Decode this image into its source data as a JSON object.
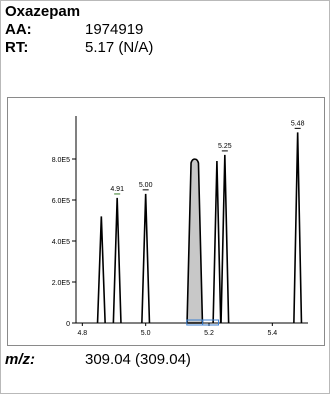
{
  "compound": "Oxazepam",
  "aa": {
    "label": "AA:",
    "value": "1974919"
  },
  "rt": {
    "label": "RT:",
    "value": "5.17 (N/A)"
  },
  "mz": {
    "label": "m/z:",
    "value": "309.04 (309.04)"
  },
  "chart_data": {
    "type": "line",
    "x_ticks": [
      "4.8",
      "5.0",
      "5.2",
      "5.4"
    ],
    "y_ticks": [
      "0",
      "2.0E5",
      "4.0E5",
      "6.0E5",
      "8.0E5"
    ],
    "xlim": [
      4.78,
      5.5
    ],
    "ylim": [
      0,
      1000000
    ],
    "peaks": [
      {
        "rt": 4.86,
        "height": 520000,
        "label": ""
      },
      {
        "rt": 4.91,
        "height": 610000,
        "label": "4.91"
      },
      {
        "rt": 5.0,
        "height": 630000,
        "label": "5.00"
      },
      {
        "rt": 5.155,
        "height": 800000,
        "label": "",
        "shaded": true
      },
      {
        "rt": 5.225,
        "height": 790000,
        "label": ""
      },
      {
        "rt": 5.25,
        "height": 820000,
        "label": "5.25"
      },
      {
        "rt": 5.48,
        "height": 930000,
        "label": "5.48"
      }
    ],
    "integration_window": [
      5.13,
      5.23
    ],
    "colors": {
      "trace": "#000000",
      "fill": "#c8c8c8",
      "marker": "#3b7fd1",
      "tick_mark": "#3a7d2a"
    }
  }
}
